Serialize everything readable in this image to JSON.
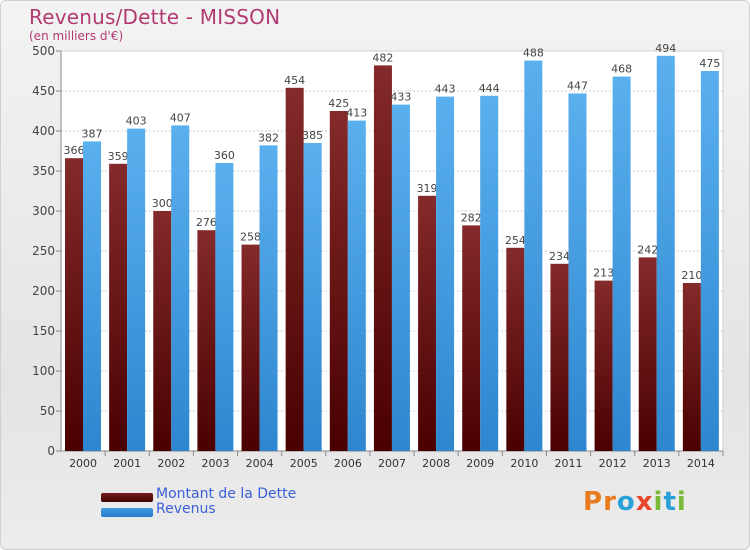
{
  "title": "Revenus/Dette - MISSON",
  "subtitle": "(en milliers d'€)",
  "brand": {
    "text": "Proxiti",
    "letters": [
      {
        "ch": "P",
        "color": "#e87b1e"
      },
      {
        "ch": "r",
        "color": "#e87b1e"
      },
      {
        "ch": "o",
        "color": "#2aa0d8"
      },
      {
        "ch": "x",
        "color": "#e8452b"
      },
      {
        "ch": "i",
        "color": "#7ab83a"
      },
      {
        "ch": "t",
        "color": "#2aa0d8"
      },
      {
        "ch": "i",
        "color": "#7ab83a"
      }
    ]
  },
  "legend": [
    {
      "label": "Montant de la Dette",
      "color": "#7a1a1a"
    },
    {
      "label": "Revenus",
      "color": "#3f9be0"
    }
  ],
  "chart_data": {
    "type": "bar",
    "categories": [
      "2000",
      "2001",
      "2002",
      "2003",
      "2004",
      "2005",
      "2006",
      "2007",
      "2008",
      "2009",
      "2010",
      "2011",
      "2012",
      "2013",
      "2014"
    ],
    "series": [
      {
        "name": "Montant de la Dette",
        "values": [
          366,
          359,
          300,
          276,
          258,
          454,
          425,
          482,
          319,
          282,
          254,
          234,
          213,
          242,
          210
        ],
        "color": "#7a1a1a"
      },
      {
        "name": "Revenus",
        "values": [
          387,
          403,
          407,
          360,
          382,
          385,
          413,
          433,
          443,
          444,
          488,
          447,
          468,
          494,
          475
        ],
        "color": "#3f9be0"
      }
    ],
    "ylim": [
      0,
      500
    ],
    "yticks": [
      0,
      50,
      100,
      150,
      200,
      250,
      300,
      350,
      400,
      450,
      500
    ],
    "grid": true,
    "legend_position": "bottom-left"
  }
}
